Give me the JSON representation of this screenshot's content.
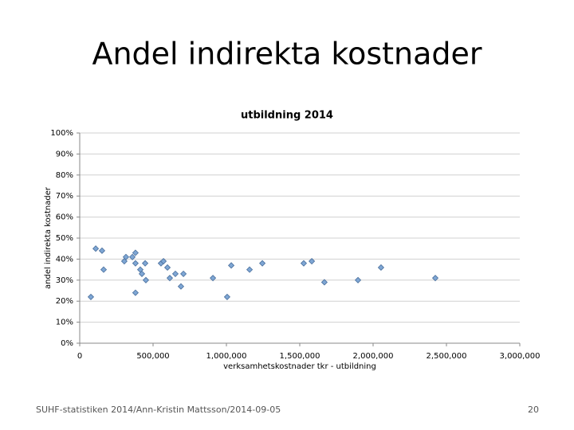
{
  "slide": {
    "title": "Andel indirekta kostnader",
    "footer": "SUHF-statistiken 2014/Ann-Kristin Mattsson/2014-09-05",
    "page_number": "20"
  },
  "chart_data": {
    "type": "scatter",
    "title": "utbildning 2014",
    "x_label": "verksamhetskostnader tkr - utbildning",
    "y_label": "andel indirekta kostnader",
    "color": "#7ea6d4",
    "x": [
      76000,
      109000,
      152000,
      163000,
      304000,
      315000,
      359000,
      380000,
      380000,
      380000,
      413000,
      424000,
      446000,
      451000,
      554000,
      571000,
      598000,
      614000,
      652000,
      690000,
      707000,
      908000,
      1005000,
      1033000,
      1158000,
      1245000,
      1527000,
      1582000,
      1668000,
      1897000,
      2054000,
      2424000
    ],
    "values": [
      22,
      45,
      44,
      35,
      39,
      41,
      41,
      43,
      38,
      24,
      35,
      33,
      38,
      30,
      38,
      39,
      36,
      31,
      33,
      27,
      33,
      31,
      22,
      37,
      35,
      38,
      38,
      39,
      29,
      30,
      36,
      31
    ],
    "xlim": [
      0,
      3000000
    ],
    "xticks": [
      0,
      {
        "value": 500000,
        "label": "500,000"
      },
      {
        "value": 1000000,
        "label": "1,000,000"
      },
      {
        "value": 1500000,
        "label": "1,500,000"
      },
      {
        "value": 2000000,
        "label": "2,000,000"
      },
      {
        "value": 2500000,
        "label": "2,500,000"
      },
      {
        "value": 3000000,
        "label": "3,000,000"
      }
    ],
    "ylim": [
      0,
      100
    ],
    "yticks": [
      {
        "value": 0,
        "label": "0%"
      },
      {
        "value": 10,
        "label": "10%"
      },
      {
        "value": 20,
        "label": "20%"
      },
      {
        "value": 30,
        "label": "30%"
      },
      {
        "value": 40,
        "label": "40%"
      },
      {
        "value": 50,
        "label": "50%"
      },
      {
        "value": 60,
        "label": "60%"
      },
      {
        "value": 70,
        "label": "70%"
      },
      {
        "value": 80,
        "label": "80%"
      },
      {
        "value": 90,
        "label": "90%"
      },
      {
        "value": 100,
        "label": "100%"
      }
    ],
    "grid": true
  }
}
